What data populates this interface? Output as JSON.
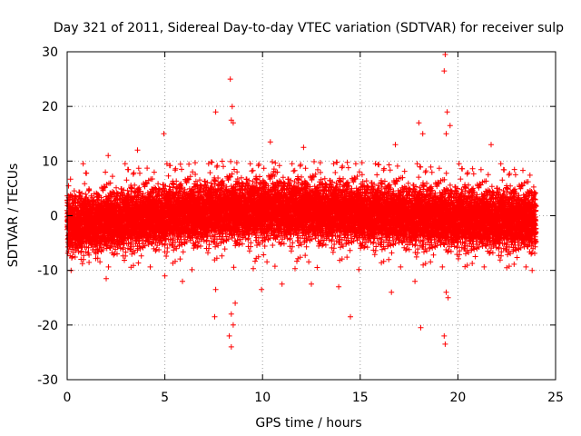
{
  "chart_data": {
    "type": "scatter",
    "title": "Day 321 of 2011, Sidereal Day-to-day VTEC variation (SDTVAR) for receiver sulp",
    "xlabel": "GPS time / hours",
    "ylabel": "SDTVAR / TECUs",
    "xlim": [
      0,
      25
    ],
    "ylim": [
      -30,
      30
    ],
    "x_ticks": [
      0,
      5,
      10,
      15,
      20,
      25
    ],
    "y_ticks": [
      -30,
      -20,
      -10,
      0,
      10,
      20,
      30
    ],
    "x_tick_labels": [
      "0",
      "5",
      "10",
      "15",
      "20",
      "25"
    ],
    "y_tick_labels": [
      "-30",
      "-20",
      "-10",
      "0",
      "10",
      "20",
      "30"
    ],
    "grid": true,
    "marker": "+",
    "color": "#ff0000",
    "series": [
      {
        "name": "SDTVAR",
        "band": {
          "x_range": [
            0,
            24
          ],
          "dense_extent": [
            -6,
            6
          ],
          "typical_extent": [
            -10,
            10
          ]
        },
        "outliers": [
          {
            "x": 8.35,
            "y": 25
          },
          {
            "x": 8.45,
            "y": 20
          },
          {
            "x": 8.4,
            "y": 17.5
          },
          {
            "x": 8.5,
            "y": 17
          },
          {
            "x": 7.6,
            "y": 19
          },
          {
            "x": 8.4,
            "y": -18
          },
          {
            "x": 8.3,
            "y": -22
          },
          {
            "x": 8.4,
            "y": -24
          },
          {
            "x": 7.55,
            "y": -18.5
          },
          {
            "x": 8.5,
            "y": -20
          },
          {
            "x": 7.6,
            "y": -13.5
          },
          {
            "x": 8.6,
            "y": -16
          },
          {
            "x": 19.35,
            "y": 29.5
          },
          {
            "x": 19.3,
            "y": 26.5
          },
          {
            "x": 19.45,
            "y": 19
          },
          {
            "x": 19.6,
            "y": 16.5
          },
          {
            "x": 19.4,
            "y": 15
          },
          {
            "x": 19.4,
            "y": -14
          },
          {
            "x": 19.5,
            "y": -15
          },
          {
            "x": 19.3,
            "y": -22
          },
          {
            "x": 19.35,
            "y": -23.5
          },
          {
            "x": 18.0,
            "y": 17
          },
          {
            "x": 18.1,
            "y": -20.5
          },
          {
            "x": 18.2,
            "y": 15
          },
          {
            "x": 14.5,
            "y": -18.5
          },
          {
            "x": 4.95,
            "y": 15
          },
          {
            "x": 9.95,
            "y": -13.5
          },
          {
            "x": 10.4,
            "y": 13.5
          },
          {
            "x": 12.1,
            "y": 12.5
          },
          {
            "x": 21.7,
            "y": 13
          },
          {
            "x": 16.8,
            "y": 13
          },
          {
            "x": 3.6,
            "y": 12
          },
          {
            "x": 2.1,
            "y": 11
          },
          {
            "x": 5.0,
            "y": -11
          },
          {
            "x": 2.0,
            "y": -11.5
          },
          {
            "x": 5.9,
            "y": -12
          },
          {
            "x": 12.5,
            "y": -12.5
          },
          {
            "x": 13.9,
            "y": -13
          },
          {
            "x": 16.6,
            "y": -14
          },
          {
            "x": 11.0,
            "y": -12.5
          },
          {
            "x": 17.8,
            "y": -12
          },
          {
            "x": 0.2,
            "y": -10
          },
          {
            "x": 23.8,
            "y": -10
          }
        ]
      }
    ]
  }
}
